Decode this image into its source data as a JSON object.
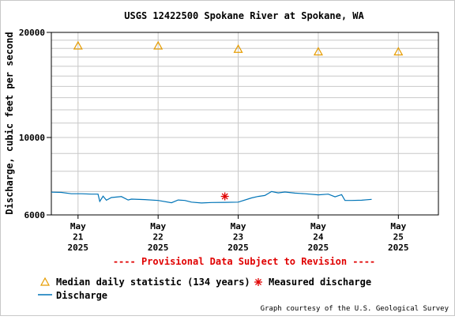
{
  "chart_data": {
    "type": "line",
    "title": "USGS 12422500 Spokane River at Spokane, WA",
    "ylabel": "Discharge, cubic feet per second",
    "yscale": "log",
    "ylim": [
      6000,
      20000
    ],
    "y_ticks": [
      "6000",
      "10000",
      "20000"
    ],
    "xlim": [
      "2025-05-20T16:00",
      "2025-05-25T12:00"
    ],
    "x_ticks": [
      {
        "date": "2025-05-21T00:00",
        "lines": [
          "May",
          "21",
          "2025"
        ]
      },
      {
        "date": "2025-05-22T00:00",
        "lines": [
          "May",
          "22",
          "2025"
        ]
      },
      {
        "date": "2025-05-23T00:00",
        "lines": [
          "May",
          "23",
          "2025"
        ]
      },
      {
        "date": "2025-05-24T00:00",
        "lines": [
          "May",
          "24",
          "2025"
        ]
      },
      {
        "date": "2025-05-25T00:00",
        "lines": [
          "May",
          "25",
          "2025"
        ]
      }
    ],
    "grid": true,
    "colors": {
      "discharge": "#0074b7",
      "median": "#e69c00",
      "measured": "#e00000",
      "provisional": "#e00000"
    },
    "series": [
      {
        "name": "Discharge",
        "style": "line",
        "x": [
          "2025-05-20T16:00",
          "2025-05-20T19:00",
          "2025-05-20T22:00",
          "2025-05-21T01:00",
          "2025-05-21T04:00",
          "2025-05-21T06:00",
          "2025-05-21T06:30",
          "2025-05-21T07:30",
          "2025-05-21T08:30",
          "2025-05-21T10:00",
          "2025-05-21T13:00",
          "2025-05-21T15:00",
          "2025-05-21T16:00",
          "2025-05-21T20:00",
          "2025-05-22T00:00",
          "2025-05-22T04:00",
          "2025-05-22T06:00",
          "2025-05-22T08:00",
          "2025-05-22T10:00",
          "2025-05-22T13:00",
          "2025-05-22T16:00",
          "2025-05-22T20:00",
          "2025-05-23T00:00",
          "2025-05-23T04:00",
          "2025-05-23T06:00",
          "2025-05-23T08:00",
          "2025-05-23T10:00",
          "2025-05-23T12:00",
          "2025-05-23T14:00",
          "2025-05-23T17:00",
          "2025-05-23T20:00",
          "2025-05-24T00:00",
          "2025-05-24T03:00",
          "2025-05-24T05:00",
          "2025-05-24T07:00",
          "2025-05-24T08:00",
          "2025-05-24T10:00",
          "2025-05-24T13:00",
          "2025-05-24T16:00"
        ],
        "y": [
          6970,
          6960,
          6900,
          6900,
          6880,
          6880,
          6560,
          6790,
          6610,
          6730,
          6770,
          6620,
          6660,
          6640,
          6600,
          6500,
          6620,
          6600,
          6530,
          6490,
          6510,
          6520,
          6530,
          6710,
          6780,
          6820,
          7000,
          6940,
          6980,
          6930,
          6900,
          6850,
          6880,
          6760,
          6860,
          6600,
          6600,
          6610,
          6650
        ]
      },
      {
        "name": "Median daily statistic (134 years)",
        "style": "triangle",
        "x": [
          "2025-05-21T00:00",
          "2025-05-22T00:00",
          "2025-05-23T00:00",
          "2025-05-24T00:00",
          "2025-05-25T00:00"
        ],
        "y": [
          18300,
          18300,
          17900,
          17600,
          17600
        ]
      },
      {
        "name": "Measured discharge",
        "style": "asterisk",
        "x": [
          "2025-05-22T20:00"
        ],
        "y": [
          6780
        ]
      }
    ],
    "annotations": {
      "provisional": "---- Provisional Data Subject to Revision ----",
      "credit": "Graph courtesy of the U.S. Geological Survey"
    },
    "legend": {
      "placement": "bottom-left",
      "items": [
        "Median daily statistic (134 years)",
        "Measured discharge",
        "Discharge"
      ]
    }
  }
}
